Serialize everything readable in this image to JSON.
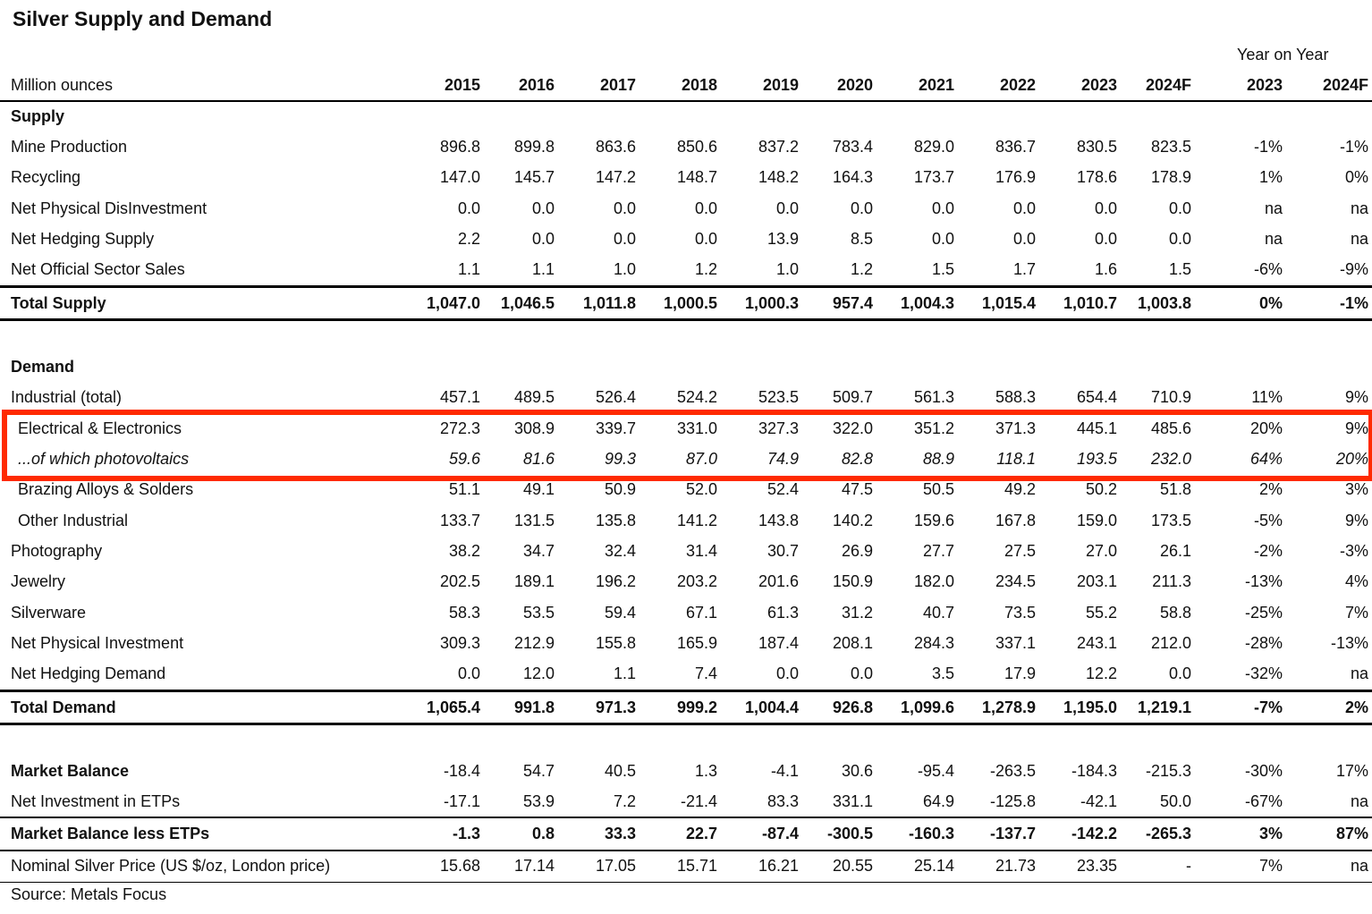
{
  "title": "Silver Supply and Demand",
  "yoy_label": "Year on Year",
  "header": {
    "label": "Million ounces",
    "columns": [
      "2015",
      "2016",
      "2017",
      "2018",
      "2019",
      "2020",
      "2021",
      "2022",
      "2023",
      "2024F",
      "2023",
      "2024F"
    ]
  },
  "sections": {
    "supply": "Supply",
    "demand": "Demand"
  },
  "rows": {
    "mine_production": {
      "label": "Mine Production",
      "values": [
        "896.8",
        "899.8",
        "863.6",
        "850.6",
        "837.2",
        "783.4",
        "829.0",
        "836.7",
        "830.5",
        "823.5",
        "-1%",
        "-1%"
      ]
    },
    "recycling": {
      "label": "Recycling",
      "values": [
        "147.0",
        "145.7",
        "147.2",
        "148.7",
        "148.2",
        "164.3",
        "173.7",
        "176.9",
        "178.6",
        "178.9",
        "1%",
        "0%"
      ]
    },
    "net_phys_disinvest": {
      "label": "Net Physical DisInvestment",
      "values": [
        "0.0",
        "0.0",
        "0.0",
        "0.0",
        "0.0",
        "0.0",
        "0.0",
        "0.0",
        "0.0",
        "0.0",
        "na",
        "na"
      ]
    },
    "net_hedging_supply": {
      "label": "Net Hedging Supply",
      "values": [
        "2.2",
        "0.0",
        "0.0",
        "0.0",
        "13.9",
        "8.5",
        "0.0",
        "0.0",
        "0.0",
        "0.0",
        "na",
        "na"
      ]
    },
    "net_official_sales": {
      "label": "Net Official Sector Sales",
      "values": [
        "1.1",
        "1.1",
        "1.0",
        "1.2",
        "1.0",
        "1.2",
        "1.5",
        "1.7",
        "1.6",
        "1.5",
        "-6%",
        "-9%"
      ]
    },
    "total_supply": {
      "label": "Total Supply",
      "values": [
        "1,047.0",
        "1,046.5",
        "1,011.8",
        "1,000.5",
        "1,000.3",
        "957.4",
        "1,004.3",
        "1,015.4",
        "1,010.7",
        "1,003.8",
        "0%",
        "-1%"
      ]
    },
    "industrial": {
      "label": "Industrial (total)",
      "values": [
        "457.1",
        "489.5",
        "526.4",
        "524.2",
        "523.5",
        "509.7",
        "561.3",
        "588.3",
        "654.4",
        "710.9",
        "11%",
        "9%"
      ]
    },
    "electrical": {
      "label": "Electrical & Electronics",
      "values": [
        "272.3",
        "308.9",
        "339.7",
        "331.0",
        "327.3",
        "322.0",
        "351.2",
        "371.3",
        "445.1",
        "485.6",
        "20%",
        "9%"
      ]
    },
    "photovoltaics": {
      "label": "...of which photovoltaics",
      "values": [
        "59.6",
        "81.6",
        "99.3",
        "87.0",
        "74.9",
        "82.8",
        "88.9",
        "118.1",
        "193.5",
        "232.0",
        "64%",
        "20%"
      ]
    },
    "brazing": {
      "label": "Brazing Alloys & Solders",
      "values": [
        "51.1",
        "49.1",
        "50.9",
        "52.0",
        "52.4",
        "47.5",
        "50.5",
        "49.2",
        "50.2",
        "51.8",
        "2%",
        "3%"
      ]
    },
    "other_industrial": {
      "label": "Other Industrial",
      "values": [
        "133.7",
        "131.5",
        "135.8",
        "141.2",
        "143.8",
        "140.2",
        "159.6",
        "167.8",
        "159.0",
        "173.5",
        "-5%",
        "9%"
      ]
    },
    "photography": {
      "label": "Photography",
      "values": [
        "38.2",
        "34.7",
        "32.4",
        "31.4",
        "30.7",
        "26.9",
        "27.7",
        "27.5",
        "27.0",
        "26.1",
        "-2%",
        "-3%"
      ]
    },
    "jewelry": {
      "label": "Jewelry",
      "values": [
        "202.5",
        "189.1",
        "196.2",
        "203.2",
        "201.6",
        "150.9",
        "182.0",
        "234.5",
        "203.1",
        "211.3",
        "-13%",
        "4%"
      ]
    },
    "silverware": {
      "label": "Silverware",
      "values": [
        "58.3",
        "53.5",
        "59.4",
        "67.1",
        "61.3",
        "31.2",
        "40.7",
        "73.5",
        "55.2",
        "58.8",
        "-25%",
        "7%"
      ]
    },
    "net_phys_invest": {
      "label": "Net Physical Investment",
      "values": [
        "309.3",
        "212.9",
        "155.8",
        "165.9",
        "187.4",
        "208.1",
        "284.3",
        "337.1",
        "243.1",
        "212.0",
        "-28%",
        "-13%"
      ]
    },
    "net_hedging_demand": {
      "label": "Net Hedging Demand",
      "values": [
        "0.0",
        "12.0",
        "1.1",
        "7.4",
        "0.0",
        "0.0",
        "3.5",
        "17.9",
        "12.2",
        "0.0",
        "-32%",
        "na"
      ]
    },
    "total_demand": {
      "label": "Total Demand",
      "values": [
        "1,065.4",
        "991.8",
        "971.3",
        "999.2",
        "1,004.4",
        "926.8",
        "1,099.6",
        "1,278.9",
        "1,195.0",
        "1,219.1",
        "-7%",
        "2%"
      ]
    },
    "market_balance": {
      "label": "Market Balance",
      "values": [
        "-18.4",
        "54.7",
        "40.5",
        "1.3",
        "-4.1",
        "30.6",
        "-95.4",
        "-263.5",
        "-184.3",
        "-215.3",
        "-30%",
        "17%"
      ]
    },
    "net_etps": {
      "label": "Net Investment in ETPs",
      "values": [
        "-17.1",
        "53.9",
        "7.2",
        "-21.4",
        "83.3",
        "331.1",
        "64.9",
        "-125.8",
        "-42.1",
        "50.0",
        "-67%",
        "na"
      ]
    },
    "balance_less_etps": {
      "label": "Market Balance less ETPs",
      "values": [
        "-1.3",
        "0.8",
        "33.3",
        "22.7",
        "-87.4",
        "-300.5",
        "-160.3",
        "-137.7",
        "-142.2",
        "-265.3",
        "3%",
        "87%"
      ]
    },
    "silver_price": {
      "label": "Nominal Silver Price (US $/oz, London price)",
      "values": [
        "15.68",
        "17.14",
        "17.05",
        "15.71",
        "16.21",
        "20.55",
        "25.14",
        "21.73",
        "23.35",
        "-",
        "7%",
        "na"
      ]
    }
  },
  "source": "Source: Metals Focus"
}
